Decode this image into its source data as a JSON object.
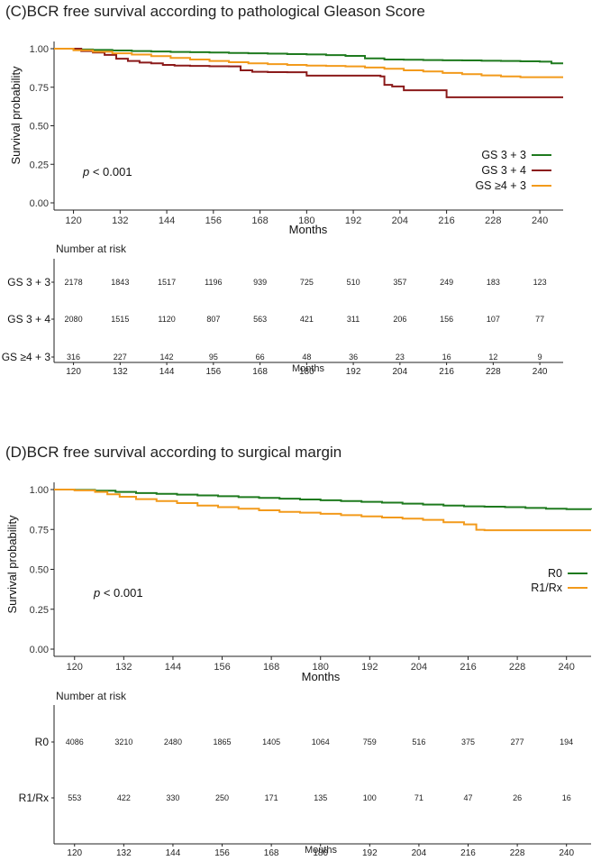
{
  "charts": [
    {
      "title": "(C)BCR free survival according to pathological Gleason Score",
      "ylabel": "Survival probability",
      "xlabel": "Months",
      "pvalue_prefix": "p",
      "pvalue_suffix": " < 0.001",
      "risk_title": "Number at risk",
      "risk_xlabel": "Months"
    },
    {
      "title": "(D)BCR free survival according to surgical margin",
      "ylabel": "Survival probability",
      "xlabel": "Months",
      "pvalue_prefix": "p",
      "pvalue_suffix": " < 0.001",
      "risk_title": "Number at risk",
      "risk_xlabel": "Months"
    }
  ],
  "chart_data": [
    {
      "type": "line",
      "title": "(C)BCR free survival according to pathological Gleason Score",
      "xlabel": "Months",
      "ylabel": "Survival probability",
      "xlim": [
        115,
        246
      ],
      "ylim": [
        0,
        1
      ],
      "xticks": [
        120,
        132,
        144,
        156,
        168,
        180,
        192,
        204,
        216,
        228,
        240
      ],
      "yticks": [
        0.0,
        0.25,
        0.5,
        0.75,
        1.0
      ],
      "ytick_labels": [
        "0.00",
        "0.25",
        "0.50",
        "0.75",
        "1.00"
      ],
      "legend_position": "right",
      "annotation": "p < 0.001",
      "series": [
        {
          "name": "GS 3 + 3",
          "color": "#1e7a1e",
          "x": [
            115,
            120,
            125,
            130,
            135,
            140,
            145,
            150,
            155,
            160,
            165,
            170,
            175,
            180,
            185,
            190,
            195,
            200,
            205,
            210,
            215,
            220,
            225,
            230,
            235,
            240,
            243,
            246
          ],
          "y": [
            1.0,
            0.995,
            0.992,
            0.988,
            0.985,
            0.982,
            0.979,
            0.977,
            0.975,
            0.972,
            0.97,
            0.968,
            0.965,
            0.963,
            0.958,
            0.953,
            0.937,
            0.93,
            0.928,
            0.926,
            0.925,
            0.924,
            0.922,
            0.92,
            0.918,
            0.916,
            0.905,
            0.905
          ]
        },
        {
          "name": "GS 3 + 4",
          "color": "#8b1a1a",
          "x": [
            115,
            120,
            122,
            125,
            128,
            131,
            134,
            137,
            140,
            143,
            146,
            150,
            155,
            160,
            163,
            166,
            170,
            175,
            178,
            180,
            185,
            190,
            195,
            199,
            200,
            202,
            205,
            210,
            214,
            216,
            220,
            225,
            230,
            235,
            240,
            246
          ],
          "y": [
            1.0,
            1.0,
            0.985,
            0.975,
            0.96,
            0.935,
            0.92,
            0.91,
            0.905,
            0.895,
            0.89,
            0.888,
            0.886,
            0.885,
            0.86,
            0.85,
            0.848,
            0.847,
            0.847,
            0.825,
            0.825,
            0.825,
            0.825,
            0.82,
            0.765,
            0.755,
            0.73,
            0.73,
            0.73,
            0.685,
            0.685,
            0.685,
            0.685,
            0.685,
            0.685,
            0.685
          ]
        },
        {
          "name": "GS ≥4 + 3",
          "color": "#f29a1b",
          "x": [
            115,
            120,
            125,
            130,
            135,
            140,
            145,
            150,
            155,
            160,
            165,
            170,
            175,
            180,
            185,
            190,
            195,
            200,
            205,
            210,
            215,
            220,
            225,
            230,
            235,
            240,
            246
          ],
          "y": [
            1.0,
            0.99,
            0.98,
            0.97,
            0.962,
            0.952,
            0.94,
            0.93,
            0.92,
            0.912,
            0.905,
            0.9,
            0.895,
            0.89,
            0.888,
            0.885,
            0.878,
            0.87,
            0.86,
            0.852,
            0.843,
            0.835,
            0.827,
            0.82,
            0.815,
            0.815,
            0.815
          ]
        }
      ],
      "risk_table": {
        "title": "Number at risk",
        "xlabel": "Months",
        "rows": [
          {
            "label": "GS 3 + 3",
            "values": [
              2178,
              1843,
              1517,
              1196,
              939,
              725,
              510,
              357,
              249,
              183,
              123
            ]
          },
          {
            "label": "GS 3 + 4",
            "values": [
              2080,
              1515,
              1120,
              807,
              563,
              421,
              311,
              206,
              156,
              107,
              77
            ]
          },
          {
            "label": "GS ≥4 + 3",
            "values": [
              316,
              227,
              142,
              95,
              66,
              48,
              36,
              23,
              16,
              12,
              9
            ]
          }
        ]
      }
    },
    {
      "type": "line",
      "title": "(D)BCR free survival according to surgical margin",
      "xlabel": "Months",
      "ylabel": "Survival probability",
      "xlim": [
        115,
        246
      ],
      "ylim": [
        0,
        1
      ],
      "xticks": [
        120,
        132,
        144,
        156,
        168,
        180,
        192,
        204,
        216,
        228,
        240
      ],
      "yticks": [
        0.0,
        0.25,
        0.5,
        0.75,
        1.0
      ],
      "ytick_labels": [
        "0.00",
        "0.25",
        "0.50",
        "0.75",
        "1.00"
      ],
      "legend_position": "right",
      "annotation": "p < 0.001",
      "series": [
        {
          "name": "R0",
          "color": "#1e7a1e",
          "x": [
            115,
            120,
            125,
            130,
            135,
            140,
            145,
            150,
            155,
            160,
            165,
            170,
            175,
            180,
            185,
            190,
            195,
            200,
            205,
            210,
            215,
            220,
            225,
            230,
            235,
            240,
            246
          ],
          "y": [
            1.0,
            0.998,
            0.993,
            0.985,
            0.978,
            0.973,
            0.968,
            0.963,
            0.958,
            0.953,
            0.948,
            0.943,
            0.938,
            0.933,
            0.928,
            0.923,
            0.918,
            0.912,
            0.906,
            0.9,
            0.895,
            0.893,
            0.89,
            0.885,
            0.88,
            0.877,
            0.875
          ]
        },
        {
          "name": "R1/Rx",
          "color": "#f29a1b",
          "x": [
            115,
            120,
            125,
            128,
            131,
            135,
            140,
            145,
            150,
            155,
            160,
            165,
            170,
            175,
            180,
            185,
            190,
            195,
            200,
            205,
            210,
            215,
            218,
            220,
            225,
            230,
            235,
            240,
            246
          ],
          "y": [
            1.0,
            0.995,
            0.985,
            0.97,
            0.955,
            0.94,
            0.928,
            0.915,
            0.9,
            0.89,
            0.88,
            0.87,
            0.86,
            0.855,
            0.848,
            0.84,
            0.832,
            0.825,
            0.818,
            0.81,
            0.795,
            0.782,
            0.748,
            0.745,
            0.745,
            0.745,
            0.745,
            0.745,
            0.745
          ]
        }
      ],
      "risk_table": {
        "title": "Number at risk",
        "xlabel": "Months",
        "rows": [
          {
            "label": "R0",
            "values": [
              4086,
              3210,
              2480,
              1865,
              1405,
              1064,
              759,
              516,
              375,
              277,
              194
            ]
          },
          {
            "label": "R1/Rx",
            "values": [
              553,
              422,
              330,
              250,
              171,
              135,
              100,
              71,
              47,
              26,
              16
            ]
          }
        ]
      }
    }
  ]
}
